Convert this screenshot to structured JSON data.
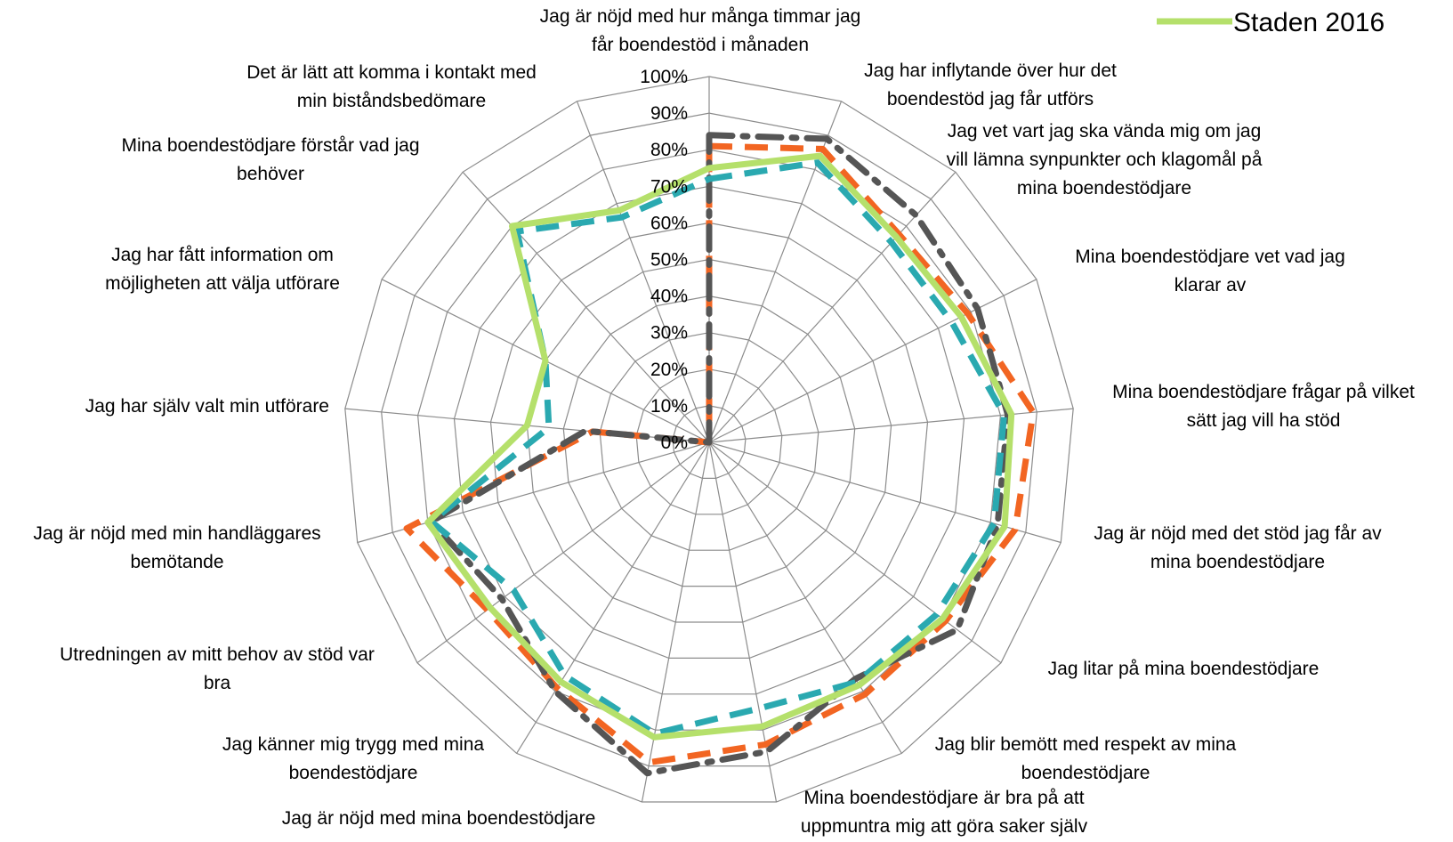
{
  "chart_data": {
    "type": "radar",
    "title": "",
    "rmin": 0,
    "rmax": 100,
    "tick_step": 10,
    "tick_labels": [
      "0%",
      "10%",
      "20%",
      "30%",
      "40%",
      "50%",
      "60%",
      "70%",
      "80%",
      "90%",
      "100%"
    ],
    "grid": true,
    "legend_position": "top-right",
    "categories": [
      [
        "Jag är nöjd med hur många timmar jag",
        "får boendestöd i månaden"
      ],
      [
        "Jag har inflytande över hur det",
        "boendestöd jag får utförs"
      ],
      [
        "Jag vet vart jag ska vända mig om jag",
        "vill lämna synpunkter och klagomål på",
        "mina boendestödjare"
      ],
      [
        "Mina boendestödjare vet vad jag",
        "klarar av"
      ],
      [
        "Mina boendestödjare frågar på vilket",
        "sätt jag vill ha stöd"
      ],
      [
        "Jag är nöjd med det stöd jag får av",
        "mina boendestödjare"
      ],
      [
        "Jag litar på mina boendestödjare"
      ],
      [
        "Jag blir bemött med respekt av mina",
        "boendestödjare"
      ],
      [
        "Mina boendestödjare är bra på att",
        "uppmuntra mig att göra saker själv"
      ],
      [
        "Jag är nöjd med mina boendestödjare"
      ],
      [
        "Jag känner mig trygg med mina",
        "boendestödjare"
      ],
      [
        "Utredningen av mitt behov av stöd var",
        "bra"
      ],
      [
        "Jag är nöjd med min handläggares",
        "bemötande"
      ],
      [
        "Jag har själv valt min utförare"
      ],
      [
        "Jag har fått information om",
        "möjligheten att välja utförare"
      ],
      [
        "Mina boendestödjare förstår vad jag",
        "behöver"
      ],
      [
        "Det är lätt att komma i kontakt med",
        "min biståndsbedömare"
      ]
    ],
    "series": [
      {
        "name": "",
        "color": "#f26522",
        "style": "dashed",
        "values": [
          81,
          86,
          77,
          79,
          89,
          87,
          81,
          81,
          84,
          89,
          79,
          76,
          86,
          32,
          0,
          0,
          0
        ]
      },
      {
        "name": "",
        "color": "#555555",
        "style": "dash-dot",
        "values": [
          84,
          89,
          84,
          82,
          82,
          82,
          85,
          76,
          86,
          92,
          80,
          71,
          79,
          34,
          0,
          0,
          0
        ]
      },
      {
        "name": "",
        "color": "#2aa9b0",
        "style": "dashed",
        "values": [
          72,
          82,
          74,
          74,
          81,
          81,
          78,
          77,
          74,
          81,
          75,
          67,
          79,
          44,
          50,
          78,
          66
        ]
      },
      {
        "name": "Staden 2016",
        "color": "#b5e06b",
        "style": "solid",
        "values": [
          75,
          84,
          76,
          77,
          83,
          84,
          80,
          78,
          79,
          82,
          77,
          75,
          80,
          50,
          50,
          80,
          68
        ]
      }
    ]
  }
}
